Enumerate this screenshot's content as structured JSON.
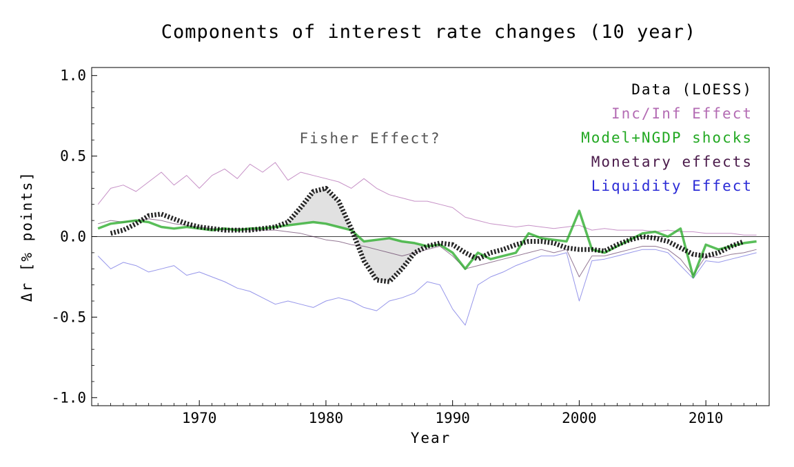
{
  "chart_data": {
    "type": "line",
    "title": "Components of interest rate changes (10 year)",
    "xlabel": "Year",
    "ylabel": "Δr [% points]",
    "xlim": [
      1961.5,
      2015.0
    ],
    "ylim": [
      -1.05,
      1.05
    ],
    "xticks": [
      1970,
      1980,
      1990,
      2000,
      2010
    ],
    "yticks": [
      1.0,
      0.5,
      0.0,
      -0.5,
      -1.0
    ],
    "ytick_labels": [
      "1.0",
      "0.5",
      "0.0",
      "-0.5",
      "-1.0"
    ],
    "grid": false,
    "zero_line": true,
    "legend_position": "top-right",
    "legend": [
      {
        "label": "Data (LOESS)",
        "color": "#000000"
      },
      {
        "label": "Inc/Inf Effect",
        "color": "#b36bb3"
      },
      {
        "label": "Model+NGDP shocks",
        "color": "#22a822"
      },
      {
        "label": "Monetary effects",
        "color": "#4a1a4a"
      },
      {
        "label": "Liquidity Effect",
        "color": "#2b2bd6"
      }
    ],
    "annotations": [
      {
        "text": "Fisher Effect?",
        "x": 1982.5,
        "y": 0.6
      }
    ],
    "series": [
      {
        "name": "Inc/Inf Effect",
        "color": "#b36bb3",
        "x": [
          1962,
          1963,
          1964,
          1965,
          1966,
          1967,
          1968,
          1969,
          1970,
          1971,
          1972,
          1973,
          1974,
          1975,
          1976,
          1977,
          1978,
          1979,
          1980,
          1981,
          1982,
          1983,
          1984,
          1985,
          1986,
          1987,
          1988,
          1989,
          1990,
          1991,
          1992,
          1993,
          1994,
          1995,
          1996,
          1997,
          1998,
          1999,
          2000,
          2001,
          2002,
          2003,
          2004,
          2005,
          2006,
          2007,
          2008,
          2009,
          2010,
          2011,
          2012,
          2013,
          2014
        ],
        "y": [
          0.2,
          0.3,
          0.32,
          0.28,
          0.34,
          0.4,
          0.32,
          0.38,
          0.3,
          0.38,
          0.42,
          0.36,
          0.45,
          0.4,
          0.46,
          0.35,
          0.4,
          0.38,
          0.36,
          0.34,
          0.3,
          0.36,
          0.3,
          0.26,
          0.24,
          0.22,
          0.22,
          0.2,
          0.18,
          0.12,
          0.1,
          0.08,
          0.07,
          0.06,
          0.07,
          0.06,
          0.05,
          0.06,
          0.07,
          0.04,
          0.05,
          0.04,
          0.04,
          0.04,
          0.03,
          0.04,
          0.03,
          0.03,
          0.02,
          0.02,
          0.02,
          0.01,
          0.01
        ]
      },
      {
        "name": "Liquidity Effect",
        "color": "#2b2bd6",
        "x": [
          1962,
          1963,
          1964,
          1965,
          1966,
          1967,
          1968,
          1969,
          1970,
          1971,
          1972,
          1973,
          1974,
          1975,
          1976,
          1977,
          1978,
          1979,
          1980,
          1981,
          1982,
          1983,
          1984,
          1985,
          1986,
          1987,
          1988,
          1989,
          1990,
          1991,
          1992,
          1993,
          1994,
          1995,
          1996,
          1997,
          1998,
          1999,
          2000,
          2001,
          2002,
          2003,
          2004,
          2005,
          2006,
          2007,
          2008,
          2009,
          2010,
          2011,
          2012,
          2013,
          2014
        ],
        "y": [
          -0.12,
          -0.2,
          -0.16,
          -0.18,
          -0.22,
          -0.2,
          -0.18,
          -0.24,
          -0.22,
          -0.25,
          -0.28,
          -0.32,
          -0.34,
          -0.38,
          -0.42,
          -0.4,
          -0.42,
          -0.44,
          -0.4,
          -0.38,
          -0.4,
          -0.44,
          -0.46,
          -0.4,
          -0.38,
          -0.35,
          -0.28,
          -0.3,
          -0.45,
          -0.55,
          -0.3,
          -0.25,
          -0.22,
          -0.18,
          -0.15,
          -0.12,
          -0.12,
          -0.1,
          -0.4,
          -0.15,
          -0.14,
          -0.12,
          -0.1,
          -0.08,
          -0.08,
          -0.1,
          -0.18,
          -0.26,
          -0.15,
          -0.16,
          -0.14,
          -0.12,
          -0.1
        ]
      },
      {
        "name": "Monetary effects",
        "color": "#4a1a4a",
        "x": [
          1962,
          1963,
          1964,
          1965,
          1966,
          1967,
          1968,
          1969,
          1970,
          1971,
          1972,
          1973,
          1974,
          1975,
          1976,
          1977,
          1978,
          1979,
          1980,
          1981,
          1982,
          1983,
          1984,
          1985,
          1986,
          1987,
          1988,
          1989,
          1990,
          1991,
          1992,
          1993,
          1994,
          1995,
          1996,
          1997,
          1998,
          1999,
          2000,
          2001,
          2002,
          2003,
          2004,
          2005,
          2006,
          2007,
          2008,
          2009,
          2010,
          2011,
          2012,
          2013,
          2014
        ],
        "y": [
          0.08,
          0.1,
          0.09,
          0.1,
          0.11,
          0.1,
          0.08,
          0.07,
          0.06,
          0.05,
          0.04,
          0.05,
          0.04,
          0.04,
          0.04,
          0.03,
          0.02,
          0.0,
          -0.02,
          -0.03,
          -0.05,
          -0.06,
          -0.08,
          -0.1,
          -0.12,
          -0.1,
          -0.08,
          -0.06,
          -0.12,
          -0.2,
          -0.18,
          -0.16,
          -0.14,
          -0.12,
          -0.1,
          -0.08,
          -0.1,
          -0.08,
          -0.25,
          -0.12,
          -0.12,
          -0.1,
          -0.08,
          -0.06,
          -0.06,
          -0.08,
          -0.14,
          -0.24,
          -0.12,
          -0.13,
          -0.11,
          -0.1,
          -0.08
        ]
      },
      {
        "name": "Model+NGDP shocks",
        "color": "#22a822",
        "x": [
          1962,
          1963,
          1964,
          1965,
          1966,
          1967,
          1968,
          1969,
          1970,
          1971,
          1972,
          1973,
          1974,
          1975,
          1976,
          1977,
          1978,
          1979,
          1980,
          1981,
          1982,
          1983,
          1984,
          1985,
          1986,
          1987,
          1988,
          1989,
          1990,
          1991,
          1992,
          1993,
          1994,
          1995,
          1996,
          1997,
          1998,
          1999,
          2000,
          2001,
          2002,
          2003,
          2004,
          2005,
          2006,
          2007,
          2008,
          2009,
          2010,
          2011,
          2012,
          2013,
          2014
        ],
        "y": [
          0.05,
          0.08,
          0.09,
          0.1,
          0.09,
          0.06,
          0.05,
          0.06,
          0.05,
          0.04,
          0.05,
          0.04,
          0.05,
          0.05,
          0.06,
          0.07,
          0.08,
          0.09,
          0.08,
          0.06,
          0.04,
          -0.03,
          -0.02,
          -0.01,
          -0.03,
          -0.04,
          -0.06,
          -0.05,
          -0.1,
          -0.2,
          -0.1,
          -0.14,
          -0.12,
          -0.1,
          0.02,
          -0.01,
          -0.02,
          -0.03,
          0.16,
          -0.08,
          -0.1,
          -0.06,
          -0.02,
          0.02,
          0.03,
          0.0,
          0.05,
          -0.25,
          -0.05,
          -0.08,
          -0.06,
          -0.04,
          -0.03
        ]
      },
      {
        "name": "Data (LOESS)",
        "color": "#000000",
        "x": [
          1963,
          1964,
          1965,
          1966,
          1967,
          1968,
          1969,
          1970,
          1971,
          1972,
          1973,
          1974,
          1975,
          1976,
          1977,
          1978,
          1979,
          1980,
          1981,
          1982,
          1983,
          1984,
          1985,
          1986,
          1987,
          1988,
          1989,
          1990,
          1991,
          1992,
          1993,
          1994,
          1995,
          1996,
          1997,
          1998,
          1999,
          2000,
          2001,
          2002,
          2003,
          2004,
          2005,
          2006,
          2007,
          2008,
          2009,
          2010,
          2011,
          2012,
          2013
        ],
        "y": [
          0.02,
          0.04,
          0.08,
          0.13,
          0.14,
          0.11,
          0.08,
          0.06,
          0.05,
          0.04,
          0.04,
          0.04,
          0.05,
          0.06,
          0.09,
          0.18,
          0.28,
          0.3,
          0.22,
          0.05,
          -0.15,
          -0.27,
          -0.28,
          -0.2,
          -0.1,
          -0.06,
          -0.04,
          -0.05,
          -0.1,
          -0.14,
          -0.1,
          -0.08,
          -0.05,
          -0.03,
          -0.03,
          -0.04,
          -0.07,
          -0.08,
          -0.08,
          -0.09,
          -0.05,
          -0.02,
          0.0,
          -0.01,
          -0.03,
          -0.07,
          -0.11,
          -0.12,
          -0.1,
          -0.06,
          -0.03
        ]
      }
    ]
  }
}
